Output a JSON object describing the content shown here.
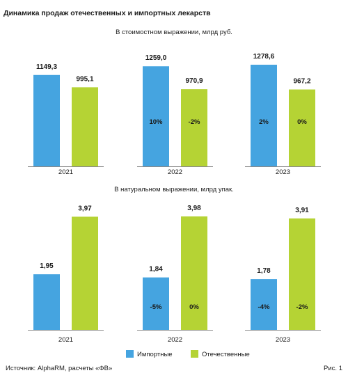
{
  "title": "Динамика продаж отечественных и импортных лекарств",
  "source": "Источник: AlphaRM, расчеты «ФВ»",
  "figure_label": "Рис. 1",
  "colors": {
    "imported": "#45a4e0",
    "domestic": "#b5d334"
  },
  "chart_data": [
    {
      "type": "bar",
      "subtitle": "В стоимостном выражении, млрд руб.",
      "categories": [
        "2021",
        "2022",
        "2023"
      ],
      "series": [
        {
          "name": "Импортные",
          "values": [
            1149.3,
            1259.0,
            1278.6
          ],
          "labels": [
            "1149,3",
            "1259,0",
            "1278,6"
          ],
          "change_labels": [
            "",
            "10%",
            "2%"
          ]
        },
        {
          "name": "Отечественные",
          "values": [
            995.1,
            970.9,
            967.2
          ],
          "labels": [
            "995,1",
            "970,9",
            "967,2"
          ],
          "change_labels": [
            "",
            "-2%",
            "0%"
          ]
        }
      ],
      "ylim": [
        0,
        1400
      ]
    },
    {
      "type": "bar",
      "subtitle": "В натуральном выражении, млрд упак.",
      "categories": [
        "2021",
        "2022",
        "2023"
      ],
      "series": [
        {
          "name": "Импортные",
          "values": [
            1.95,
            1.84,
            1.78
          ],
          "labels": [
            "1,95",
            "1,84",
            "1,78"
          ],
          "change_labels": [
            "",
            "-5%",
            "-4%"
          ]
        },
        {
          "name": "Отечественные",
          "values": [
            3.97,
            3.98,
            3.91
          ],
          "labels": [
            "3,97",
            "3,98",
            "3,91"
          ],
          "change_labels": [
            "",
            "0%",
            "-2%"
          ]
        }
      ],
      "ylim": [
        0,
        4.3
      ]
    }
  ],
  "legend": {
    "items": [
      "Импортные",
      "Отечественные"
    ],
    "placement": "bottom"
  }
}
